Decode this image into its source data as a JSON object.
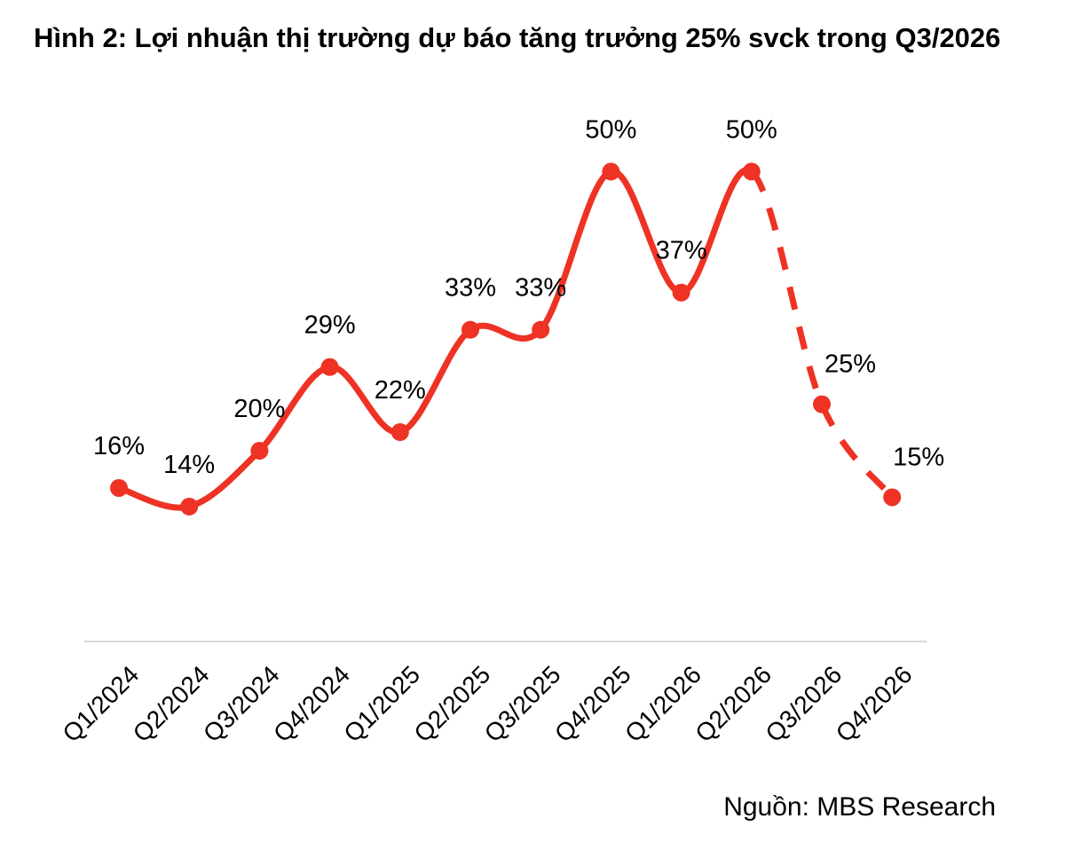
{
  "title": "Hình 2: Lợi nhuận thị trường dự báo tăng trưởng 25% svck trong Q3/2026",
  "source": "Nguồn: MBS Research",
  "colors": {
    "line": "#ee3224",
    "axis": "#d9d9d9"
  },
  "chart_data": {
    "type": "line",
    "title": "Hình 2: Lợi nhuận thị trường dự báo tăng trưởng 25% svck trong Q3/2026",
    "xlabel": "",
    "ylabel": "",
    "categories": [
      "Q1/2024",
      "Q2/2024",
      "Q3/2024",
      "Q4/2024",
      "Q1/2025",
      "Q2/2025",
      "Q3/2025",
      "Q4/2025",
      "Q1/2026",
      "Q2/2026",
      "Q3/2026",
      "Q4/2026"
    ],
    "series": [
      {
        "values": [
          16,
          14,
          20,
          29,
          22,
          33,
          33,
          50,
          37,
          50,
          25,
          15
        ],
        "labels": [
          "16%",
          "14%",
          "20%",
          "29%",
          "22%",
          "33%",
          "33%",
          "50%",
          "37%",
          "50%",
          "25%",
          "15%"
        ],
        "forecast_from_index": 9
      }
    ],
    "ylim": [
      -0.5,
      57
    ],
    "grid": false,
    "legend": "none"
  }
}
